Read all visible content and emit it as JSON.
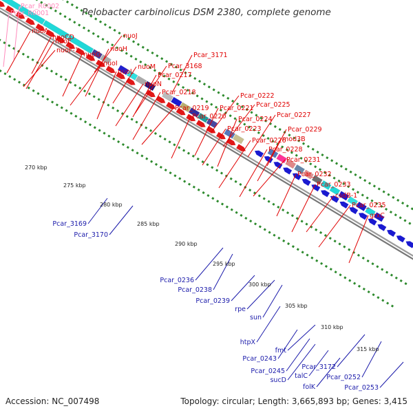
{
  "title": "Pelobacter carbinolicus DSM 2380, complete genome",
  "footer": {
    "accession": "Accession: NC_007498",
    "topology": "Topology: circular; Length: 3,665,893 bp; Genes: 3,415"
  },
  "colors": {
    "forward_label": "#e00000",
    "reverse_label": "#1a1aaa",
    "rna_label": "#ff88bb",
    "tick": "#2d8a2d",
    "backbone": "#9a9a9a"
  },
  "kbp_ticks": [
    "270 kbp",
    "275 kbp",
    "280 kbp",
    "285 kbp",
    "290 kbp",
    "295 kbp",
    "300 kbp",
    "305 kbp",
    "310 kbp",
    "315 kbp"
  ],
  "forward_labels": [
    "nuoCD",
    "nuoA",
    "nuoE",
    "nuoF-1",
    "nuoG",
    "nuoH",
    "nuoJ",
    "nuoI",
    "nuoL",
    "nuoM",
    "nuoN",
    "Pcar_3168",
    "Pcar_3171",
    "Pcar_0217",
    "Pcar_0218",
    "Pcar_0219",
    "Pcar_0220",
    "Pcar_0221",
    "Pcar_0222",
    "Pcar_0225",
    "Pcar_0224",
    "Pcar_0223",
    "Pcar_0227",
    "Pcar_0226",
    "Pcar_0229",
    "mod3B",
    "Pcar_0228",
    "Pcar_0231",
    "Pcar_0232",
    "Pcar_0233",
    "csdB-1",
    "Pcar_0235",
    "grxC"
  ],
  "rna_labels": [
    "Pcar_R0002",
    "Pcar_R0001"
  ],
  "reverse_labels": [
    "Pcar_3169",
    "Pcar_3170",
    "Pcar_0236",
    "Pcar_0238",
    "Pcar_0239",
    "rpe",
    "sun",
    "htpX",
    "fmt",
    "Pcar_0243",
    "Pcar_0245",
    "sucD",
    "talC",
    "folK",
    "Pcar_3172",
    "Pcar_0252",
    "Pcar_0253"
  ]
}
